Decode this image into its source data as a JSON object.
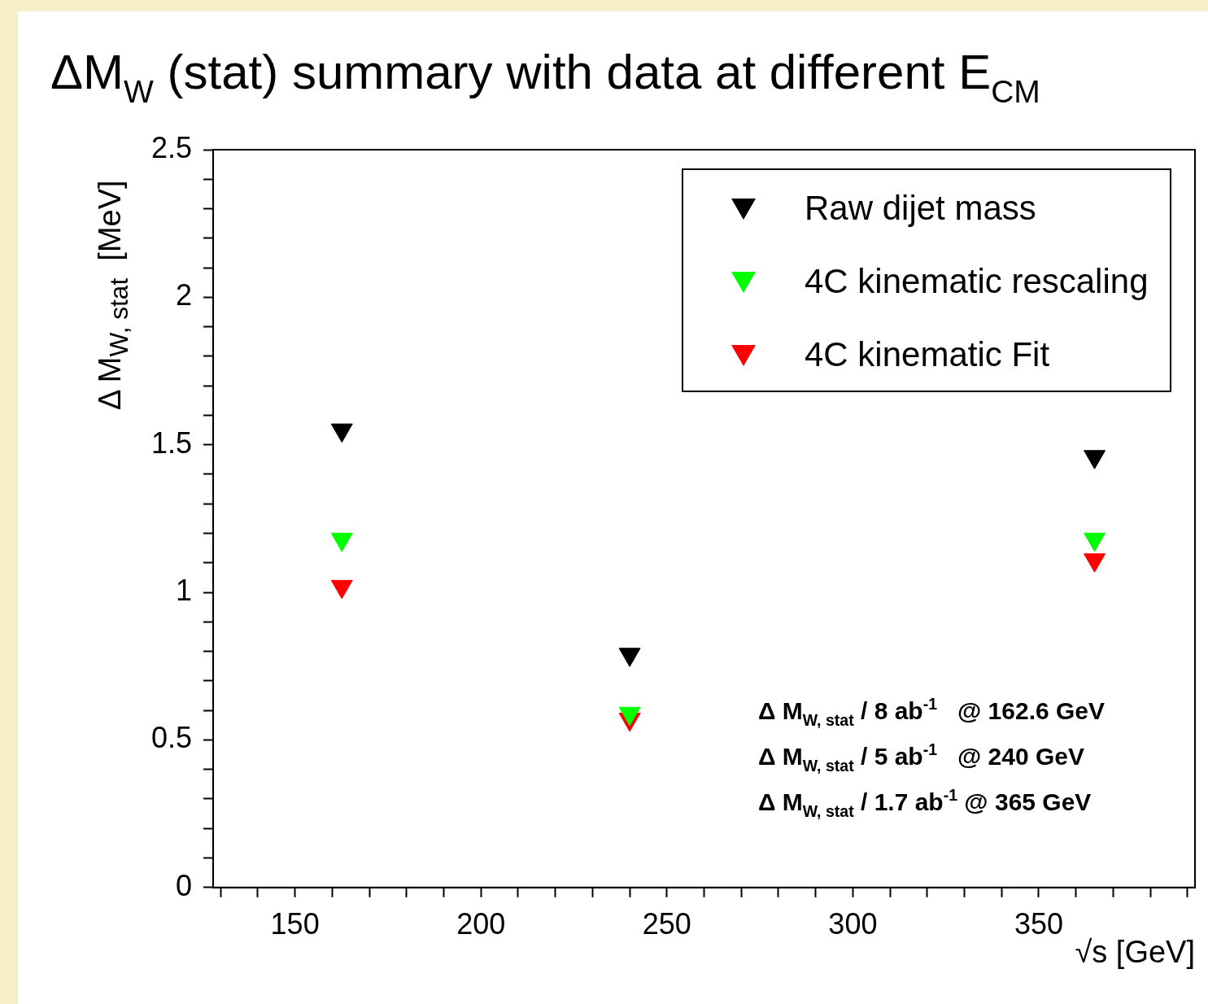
{
  "chart_data": {
    "type": "scatter",
    "title": "ΔM$_{W}$ (stat) summary with data at different E$_{CM}$",
    "xlabel": "√s [GeV]",
    "ylabel": "Δ M$_{W, stat}$  [MeV]",
    "x": [
      162.6,
      240,
      365
    ],
    "series": [
      {
        "name": "Raw dijet mass",
        "color": "#000000",
        "values": [
          1.55,
          0.79,
          1.46
        ]
      },
      {
        "name": "4C kinematic rescaling",
        "color": "#00ff00",
        "values": [
          1.18,
          0.59,
          1.18
        ]
      },
      {
        "name": "4C kinematic Fit",
        "color": "#ff0000",
        "values": [
          1.02,
          0.57,
          1.11
        ]
      }
    ],
    "marker": "triangle",
    "legend": "top right",
    "grid": false,
    "xlim": [
      128,
      392
    ],
    "xticks": [
      {
        "value": 130,
        "label": null
      },
      {
        "value": 140,
        "label": null
      },
      150,
      {
        "value": 160,
        "label": null
      },
      {
        "value": 170,
        "label": null
      },
      {
        "value": 180,
        "label": null
      },
      {
        "value": 190,
        "label": null
      },
      200,
      {
        "value": 210,
        "label": null
      },
      {
        "value": 220,
        "label": null
      },
      {
        "value": 230,
        "label": null
      },
      {
        "value": 240,
        "label": null
      },
      250,
      {
        "value": 260,
        "label": null
      },
      {
        "value": 270,
        "label": null
      },
      {
        "value": 280,
        "label": null
      },
      {
        "value": 290,
        "label": null
      },
      300,
      {
        "value": 310,
        "label": null
      },
      {
        "value": 320,
        "label": null
      },
      {
        "value": 330,
        "label": null
      },
      {
        "value": 340,
        "label": null
      },
      350,
      {
        "value": 360,
        "label": null
      },
      {
        "value": 370,
        "label": null
      },
      {
        "value": 380,
        "label": null
      },
      {
        "value": 390,
        "label": null
      }
    ],
    "ylim": [
      0,
      2.5
    ],
    "yticks": [
      0,
      {
        "value": 0.1,
        "label": null
      },
      {
        "value": 0.2,
        "label": null
      },
      {
        "value": 0.3,
        "label": null
      },
      {
        "value": 0.4,
        "label": null
      },
      0.5,
      {
        "value": 0.6,
        "label": null
      },
      {
        "value": 0.7,
        "label": null
      },
      {
        "value": 0.8,
        "label": null
      },
      {
        "value": 0.9,
        "label": null
      },
      1,
      {
        "value": 1.1,
        "label": null
      },
      {
        "value": 1.2,
        "label": null
      },
      {
        "value": 1.3,
        "label": null
      },
      {
        "value": 1.4,
        "label": null
      },
      1.5,
      {
        "value": 1.6,
        "label": null
      },
      {
        "value": 1.7,
        "label": null
      },
      {
        "value": 1.8,
        "label": null
      },
      {
        "value": 1.9,
        "label": null
      },
      2,
      {
        "value": 2.1,
        "label": null
      },
      {
        "value": 2.2,
        "label": null
      },
      {
        "value": 2.3,
        "label": null
      },
      {
        "value": 2.4,
        "label": null
      },
      2.5
    ],
    "annotations": [
      "Δ M$_{W, stat}$ / 8 ab$^{-1}$   @ 162.6 GeV",
      "Δ M$_{W, stat}$ / 5 ab$^{-1}$   @ 240 GeV",
      "Δ M$_{W, stat}$ / 1.7 ab$^{-1}$ @ 365 GeV"
    ]
  }
}
